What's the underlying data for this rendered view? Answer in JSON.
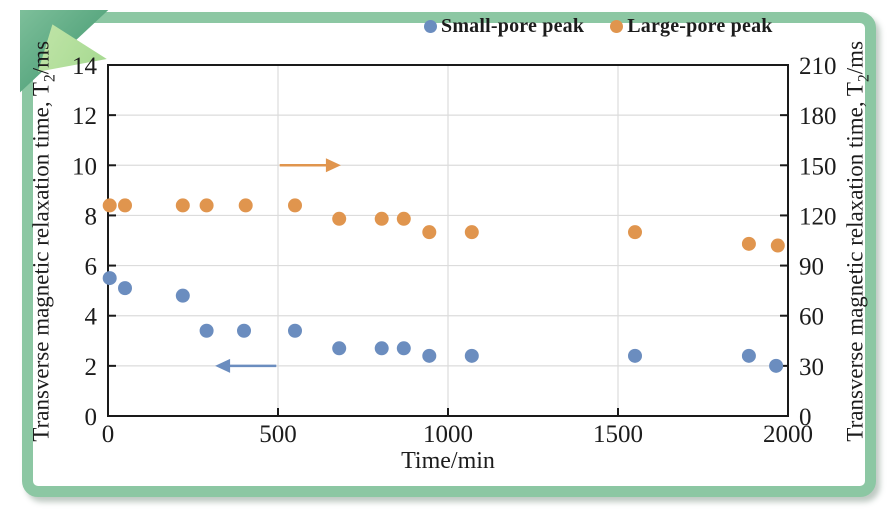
{
  "figure": {
    "frame_color": "#8cc7a3",
    "fold_dark_green": "#58a67f",
    "fold_light_green": "#a3d88e",
    "background": "#ffffff",
    "axis_color": "#1a1a1a",
    "grid_color": "#dcdcdc"
  },
  "legend": {
    "items": [
      {
        "label": "Small-pore peak",
        "color": "#6b8dbf"
      },
      {
        "label": "Large-pore peak",
        "color": "#e0954e"
      }
    ]
  },
  "chart_data": {
    "type": "scatter",
    "title": "",
    "xlabel": "Time/min",
    "ylabel_left": {
      "prefix": "Transverse magnetic relaxation time, T",
      "sub": "2",
      "suffix": "/ms"
    },
    "ylabel_right": {
      "prefix": "Transverse magnetic relaxation time, T",
      "sub": "2",
      "suffix": "/ms"
    },
    "xlim": [
      0,
      2000
    ],
    "ylim_left": [
      0,
      14
    ],
    "ylim_right": [
      0,
      210
    ],
    "xticks": [
      0,
      500,
      1000,
      1500,
      2000
    ],
    "yticks_left": [
      0,
      2,
      4,
      6,
      8,
      10,
      12,
      14
    ],
    "yticks_right": [
      0,
      30,
      60,
      90,
      120,
      150,
      180,
      210
    ],
    "grid": true,
    "legend_position": "top-center",
    "marker_radius": 7,
    "series": [
      {
        "name": "Small-pore peak",
        "axis": "left",
        "color": "#6b8dbf",
        "marker": "circle",
        "x": [
          5,
          50,
          220,
          290,
          400,
          550,
          680,
          805,
          870,
          945,
          1070,
          1550,
          1885,
          1965
        ],
        "y": [
          5.5,
          5.1,
          4.8,
          3.4,
          3.4,
          3.4,
          2.7,
          2.7,
          2.7,
          2.4,
          2.4,
          2.4,
          2.4,
          2.0
        ]
      },
      {
        "name": "Large-pore peak",
        "axis": "right",
        "color": "#e0954e",
        "marker": "circle",
        "x": [
          5,
          50,
          220,
          290,
          405,
          550,
          680,
          805,
          870,
          945,
          1070,
          1550,
          1885,
          1970
        ],
        "y": [
          126,
          126,
          126,
          126,
          126,
          126,
          118,
          118,
          118,
          110,
          110,
          110,
          103,
          102
        ]
      }
    ],
    "annotations": [
      {
        "type": "arrow",
        "direction": "left",
        "axis": "left",
        "y": 2,
        "x_tail": 495,
        "x_tip": 315,
        "color": "#6b8dbf"
      },
      {
        "type": "arrow",
        "direction": "right",
        "axis": "left",
        "y": 10,
        "x_tail": 505,
        "x_tip": 685,
        "color": "#e0954e"
      }
    ]
  }
}
